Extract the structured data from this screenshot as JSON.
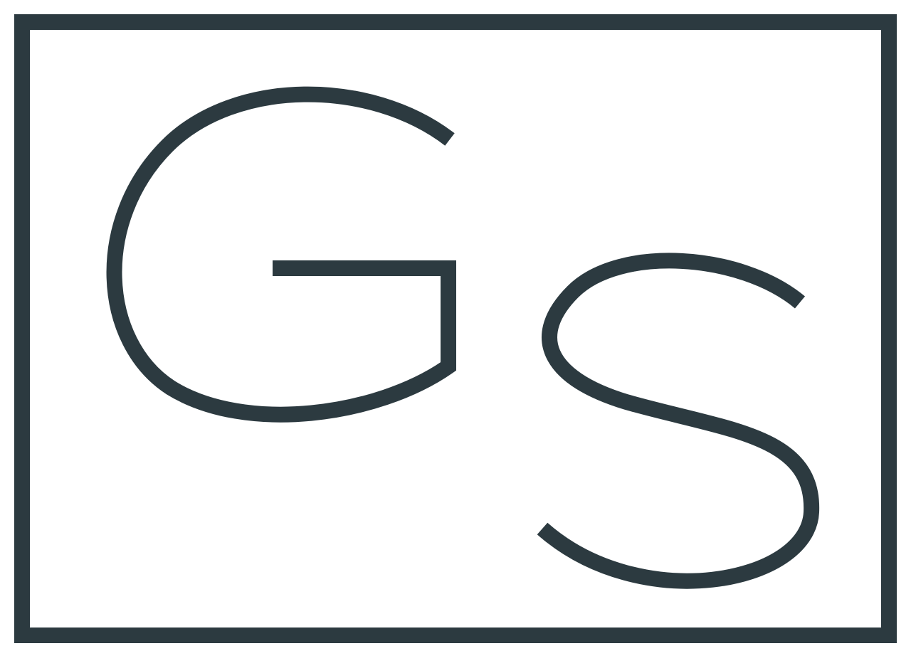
{
  "logo": {
    "monogram": "GS",
    "colors": {
      "ink": "#2c3a40",
      "background": "#ffffff"
    }
  }
}
